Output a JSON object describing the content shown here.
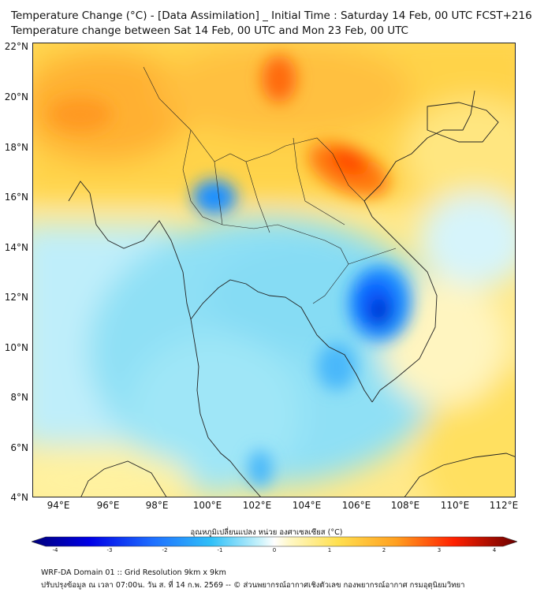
{
  "title": {
    "line1": "Temperature Change (°C) - [Data Assimilation] _ Initial Time : Saturday 14 Feb, 00 UTC FCST+216",
    "line2": "Temperature change between Sat 14 Feb, 00 UTC and Mon 23 Feb, 00 UTC"
  },
  "axes": {
    "lat_labels": [
      "22°N",
      "20°N",
      "18°N",
      "16°N",
      "14°N",
      "12°N",
      "10°N",
      "8°N",
      "6°N",
      "4°N"
    ],
    "lon_labels": [
      "94°E",
      "96°E",
      "98°E",
      "100°E",
      "102°E",
      "104°E",
      "106°E",
      "108°E",
      "110°E",
      "112°E"
    ]
  },
  "colorbar": {
    "title": "อุณหภูมิเปลี่ยนแปลง หน่วย องศาเซลเซียส (°C)",
    "ticks": [
      "-4",
      "-3",
      "-2",
      "-1",
      "0",
      "1",
      "2",
      "3",
      "4"
    ],
    "colors": {
      "min": "#00007a",
      "cold": "#1e90ff",
      "cool": "#8fe0f5",
      "zero": "#ffffff",
      "warm": "#ffd84a",
      "hot": "#ff6a00",
      "max": "#6a0000"
    }
  },
  "footer": {
    "line1": "WRF-DA Domain 01 :: Grid Resolution 9km x 9km",
    "line2": "ปรับปรุงข้อมูล ณ เวลา 07:00น. วัน ส. ที่ 14 ก.พ. 2569 -- © ส่วนพยากรณ์อากาศเชิงตัวเลข กองพยากรณ์อากาศ กรมอุตุนิยมวิทยา"
  }
}
